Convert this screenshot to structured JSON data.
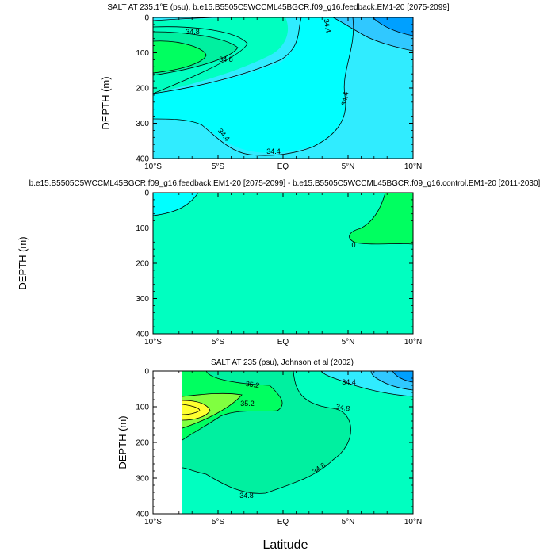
{
  "colors": {
    "cyan": "#00ffff",
    "aqua": "#30ecff",
    "teal": "#00ffc0",
    "mint": "#00f0a0",
    "green": "#00ff60",
    "lime": "#80ff40",
    "yellow": "#ffff30",
    "sky": "#30c8ff",
    "blue": "#00a0ff"
  },
  "chart_data": [
    {
      "type": "contour",
      "title": "SALT AT 235.1°E (psu), b.e15.B5505C5WCCML45BGCR.f09_g16.feedback.EM1-20 [2075-2099]",
      "ylabel": "DEPTH (m)",
      "x_ticks": [
        "10°S",
        "5°S",
        "EQ",
        "5°N",
        "10°N"
      ],
      "y_ticks": [
        "0",
        "100",
        "200",
        "300",
        "400"
      ],
      "xlim": [
        -10,
        10
      ],
      "ylim": [
        400,
        0
      ],
      "contour_labels": [
        "34.8",
        "34.8",
        "34.4",
        "34.4",
        "34.4",
        "34.4"
      ]
    },
    {
      "type": "contour",
      "title": "b.e15.B5505C5WCCML45BGCR.f09_g16.feedback.EM1-20 [2075-2099] - b.e15.B5505C5WCCML45BGCR.f09_g16.control.EM1-20 [2011-2030]",
      "ylabel": "DEPTH (m)",
      "x_ticks": [
        "10°S",
        "5°S",
        "EQ",
        "5°N",
        "10°N"
      ],
      "y_ticks": [
        "0",
        "100",
        "200",
        "300",
        "400"
      ],
      "xlim": [
        -10,
        10
      ],
      "ylim": [
        400,
        0
      ],
      "contour_labels": [
        "0"
      ]
    },
    {
      "type": "contour",
      "title": "SALT AT 235 (psu), Johnson et al (2002)",
      "ylabel": "DEPTH (m)",
      "x_ticks": [
        "10°S",
        "5°S",
        "EQ",
        "5°N",
        "10°N"
      ],
      "y_ticks": [
        "0",
        "100",
        "200",
        "300",
        "400"
      ],
      "xlim": [
        -10,
        10
      ],
      "ylim": [
        400,
        0
      ],
      "contour_labels": [
        "35.2",
        "35.2",
        "34.4",
        "34.8",
        "34.8",
        "34.8"
      ]
    }
  ],
  "xlabel": "Latitude"
}
